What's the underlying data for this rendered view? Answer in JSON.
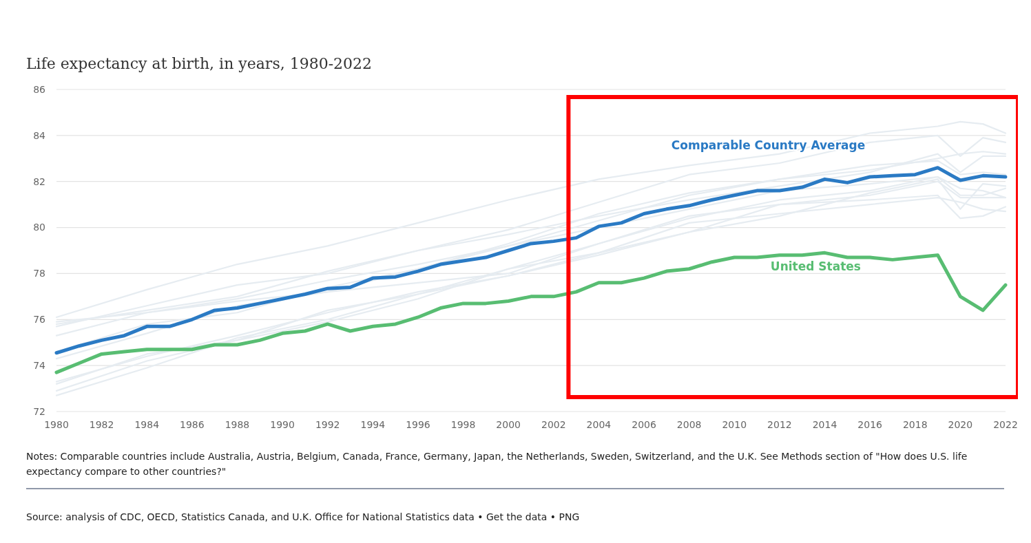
{
  "chart_data": {
    "type": "line",
    "title": "Life expectancy at birth, in years, 1980-2022",
    "x": [
      1980,
      1981,
      1982,
      1983,
      1984,
      1985,
      1986,
      1987,
      1988,
      1989,
      1990,
      1991,
      1992,
      1993,
      1994,
      1995,
      1996,
      1997,
      1998,
      1999,
      2000,
      2001,
      2002,
      2003,
      2004,
      2005,
      2006,
      2007,
      2008,
      2009,
      2010,
      2011,
      2012,
      2013,
      2014,
      2015,
      2016,
      2017,
      2018,
      2019,
      2020,
      2021,
      2022
    ],
    "xlim": [
      1980,
      2022
    ],
    "xticks": [
      1980,
      1982,
      1984,
      1986,
      1988,
      1990,
      1992,
      1994,
      1996,
      1998,
      2000,
      2002,
      2004,
      2006,
      2008,
      2010,
      2012,
      2014,
      2016,
      2018,
      2020,
      2022
    ],
    "ylim": [
      72,
      86
    ],
    "yticks": [
      72,
      74,
      76,
      78,
      80,
      82,
      84,
      86
    ],
    "grid": "y",
    "series": [
      {
        "color": "#e6ecf1",
        "x": [
          1980,
          1984,
          1988,
          1992,
          1996,
          2000,
          2004,
          2008,
          2012,
          2016,
          2019,
          2020,
          2021,
          2022
        ],
        "values": [
          76.1,
          77.3,
          78.4,
          79.2,
          80.2,
          81.2,
          82.1,
          82.7,
          83.2,
          84.1,
          84.4,
          84.6,
          84.5,
          84.1
        ]
      },
      {
        "color": "#e6ecf1",
        "x": [
          1980,
          1984,
          1988,
          1992,
          1996,
          2000,
          2004,
          2008,
          2012,
          2016,
          2019,
          2020,
          2021,
          2022
        ],
        "values": [
          75.7,
          76.6,
          77.5,
          78.0,
          79.0,
          79.9,
          81.1,
          82.3,
          82.8,
          83.7,
          84.0,
          83.1,
          83.9,
          83.7
        ]
      },
      {
        "color": "#e6ecf1",
        "x": [
          1980,
          1984,
          1988,
          1992,
          1996,
          2000,
          2004,
          2008,
          2012,
          2016,
          2019,
          2020,
          2021,
          2022
        ],
        "values": [
          74.6,
          75.8,
          76.3,
          77.4,
          78.2,
          79.3,
          80.6,
          81.5,
          82.1,
          82.5,
          83.0,
          83.2,
          83.3,
          83.2
        ]
      },
      {
        "color": "#e6ecf1",
        "x": [
          1980,
          1984,
          1988,
          1992,
          1996,
          2000,
          2004,
          2008,
          2012,
          2016,
          2019,
          2020,
          2021,
          2022
        ],
        "values": [
          75.8,
          76.4,
          77.0,
          78.1,
          79.0,
          79.7,
          80.5,
          81.2,
          81.8,
          82.4,
          83.2,
          82.4,
          83.1,
          83.1
        ]
      },
      {
        "color": "#e6ecf1",
        "x": [
          1980,
          1984,
          1988,
          1992,
          1996,
          2000,
          2004,
          2008,
          2012,
          2016,
          2019,
          2020,
          2021,
          2022
        ],
        "values": [
          74.3,
          75.4,
          76.6,
          77.2,
          78.2,
          79.2,
          80.3,
          81.4,
          82.1,
          82.7,
          82.9,
          82.3,
          82.4,
          82.3
        ]
      },
      {
        "color": "#e6ecf1",
        "x": [
          1980,
          1984,
          1988,
          1992,
          1996,
          2000,
          2004,
          2008,
          2012,
          2016,
          2019,
          2020,
          2021,
          2022
        ],
        "values": [
          75.3,
          76.3,
          76.9,
          77.7,
          78.4,
          79.2,
          80.0,
          80.8,
          81.6,
          81.9,
          82.2,
          81.7,
          81.6,
          81.3
        ]
      },
      {
        "color": "#e6ecf1",
        "x": [
          1980,
          1984,
          1988,
          1992,
          1996,
          2000,
          2004,
          2008,
          2012,
          2016,
          2019,
          2020,
          2021,
          2022
        ],
        "values": [
          75.9,
          76.3,
          76.8,
          77.2,
          77.6,
          78.0,
          79.3,
          80.4,
          81.2,
          81.6,
          82.2,
          81.4,
          81.4,
          81.7
        ]
      },
      {
        "color": "#e6ecf1",
        "x": [
          1980,
          1984,
          1988,
          1992,
          1996,
          2000,
          2004,
          2008,
          2012,
          2016,
          2019,
          2020,
          2021,
          2022
        ],
        "values": [
          72.7,
          73.9,
          75.2,
          76.0,
          77.1,
          78.2,
          79.3,
          80.5,
          81.0,
          81.4,
          82.0,
          81.3,
          81.3,
          81.3
        ]
      },
      {
        "color": "#e6ecf1",
        "x": [
          1980,
          1984,
          1988,
          1992,
          1996,
          2000,
          2004,
          2008,
          2012,
          2016,
          2019,
          2020,
          2021,
          2022
        ],
        "values": [
          73.3,
          74.4,
          75.3,
          76.3,
          77.2,
          77.9,
          78.9,
          79.8,
          80.5,
          81.5,
          82.1,
          80.8,
          81.9,
          81.8
        ]
      },
      {
        "color": "#e6ecf1",
        "x": [
          1980,
          1984,
          1988,
          1992,
          1996,
          2000,
          2004,
          2008,
          2012,
          2016,
          2019,
          2020,
          2021,
          2022
        ],
        "values": [
          72.9,
          74.2,
          75.1,
          75.9,
          76.9,
          78.2,
          78.9,
          80.2,
          80.6,
          81.0,
          81.3,
          81.1,
          80.8,
          80.7
        ]
      },
      {
        "color": "#e6ecf1",
        "x": [
          1980,
          1984,
          1988,
          1992,
          1996,
          2000,
          2004,
          2008,
          2012,
          2016,
          2019,
          2020,
          2021,
          2022
        ],
        "values": [
          73.2,
          74.5,
          75.1,
          76.4,
          77.1,
          77.9,
          78.8,
          79.8,
          81.0,
          81.2,
          81.4,
          80.4,
          80.5,
          80.9
        ]
      },
      {
        "name": "Comparable Country Average",
        "color": "#2a7ac4",
        "values": [
          74.55,
          74.85,
          75.1,
          75.3,
          75.7,
          75.7,
          76.0,
          76.4,
          76.5,
          76.7,
          76.9,
          77.1,
          77.35,
          77.4,
          77.8,
          77.85,
          78.1,
          78.4,
          78.55,
          78.7,
          79.0,
          79.3,
          79.4,
          79.55,
          80.05,
          80.2,
          80.6,
          80.8,
          80.95,
          81.2,
          81.4,
          81.6,
          81.6,
          81.75,
          82.1,
          81.95,
          82.2,
          82.25,
          82.3,
          82.6,
          82.05,
          82.25,
          82.2
        ]
      },
      {
        "name": "United States",
        "color": "#58bd72",
        "values": [
          73.7,
          74.1,
          74.5,
          74.6,
          74.7,
          74.7,
          74.7,
          74.9,
          74.9,
          75.1,
          75.4,
          75.5,
          75.8,
          75.5,
          75.7,
          75.8,
          76.1,
          76.5,
          76.7,
          76.7,
          76.8,
          77.0,
          77.0,
          77.2,
          77.6,
          77.6,
          77.8,
          78.1,
          78.2,
          78.5,
          78.7,
          78.7,
          78.8,
          78.8,
          78.9,
          78.7,
          78.7,
          78.6,
          78.7,
          78.8,
          77.0,
          76.4,
          77.5
        ]
      }
    ],
    "annotations": [
      "Notes: Comparable countries include Australia, Austria, Belgium, Canada, France, Germany, Japan, the Netherlands, Sweden, Switzerland, and the U.K. See Methods section of \"How does U.S. life expectancy compare to other countries?\"",
      "Source: analysis of CDC, OECD, Statistics Canada, and U.K. Office for National Statistics data • Get the data • PNG"
    ]
  }
}
